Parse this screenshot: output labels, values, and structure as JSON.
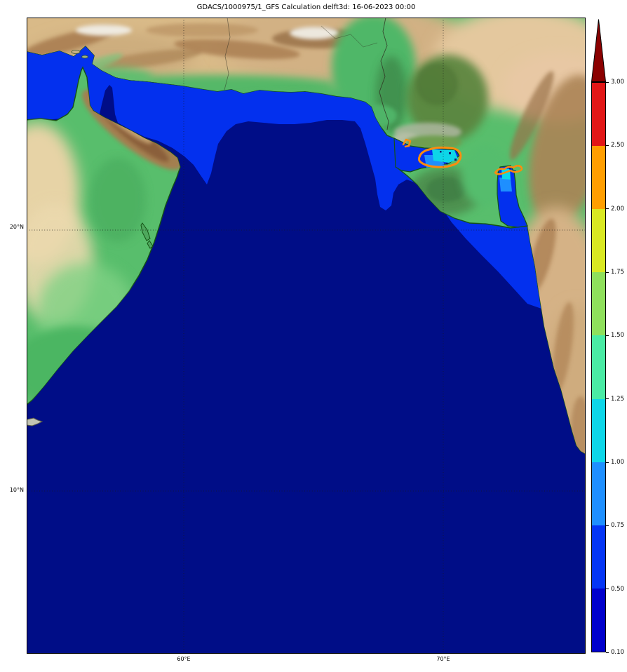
{
  "title": "GDACS/1000975/1_GFS Calculation delft3d: 16-06-2023 00:00",
  "map": {
    "y_axis_labels": [
      "20°N",
      "10°N"
    ],
    "x_axis_labels": [
      "60°E",
      "70°E"
    ]
  },
  "colorbar": {
    "over_color": "#8b0000",
    "segment_colors_top_to_bottom": [
      "#e21717",
      "#ff9e00",
      "#d9e822",
      "#8fe05c",
      "#4aeba4",
      "#0dd6e8",
      "#1e8fff",
      "#0435f5",
      "#0000cc"
    ],
    "tick_labels": [
      "3.00",
      "2.50",
      "2.00",
      "1.75",
      "1.50",
      "1.25",
      "1.00",
      "0.75",
      "0.50",
      "0.10"
    ]
  },
  "map_colors": {
    "deep_sea": "#000d87",
    "surge_band": "#0330ee",
    "surge_high": "#1e8fff",
    "surge_peak": "#0dd6e8",
    "alert_contour": "#ff8c0e",
    "land_green": "#58be6c",
    "coastline": "#145214"
  }
}
